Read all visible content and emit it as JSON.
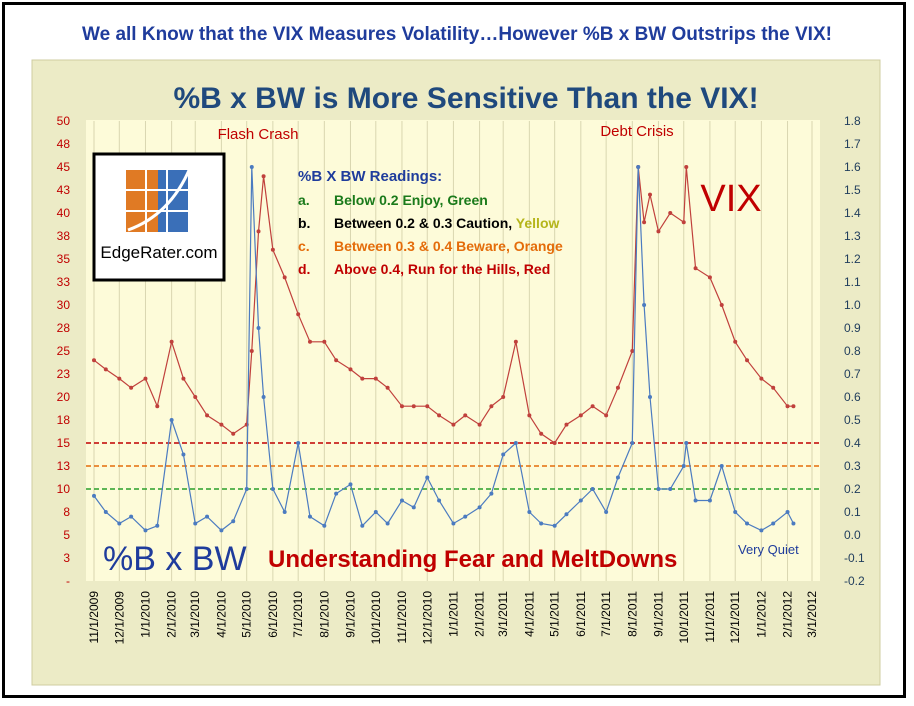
{
  "headline": "We all Know that the VIX Measures Volatility…However %B x BW Outstrips the VIX!",
  "colors": {
    "plot_bg": "#fdfbd9",
    "outer_bg": "#ecebc6",
    "vix": "#c0403c",
    "bbw": "#4b7bc0",
    "title": "#1f497d",
    "red_line": "#c00000",
    "orange_line": "#e46c0a",
    "green_line": "#2aa02a"
  },
  "logo": {
    "text": "EdgeRater.com",
    "icon": "edgerater-logo-icon"
  },
  "readings": {
    "title": "%B X BW Readings:",
    "items": [
      {
        "letter": "a.",
        "text": "Below 0.2 Enjoy, Green",
        "color": "#1a7a1a",
        "letter_color": "#1a7a1a"
      },
      {
        "letter": "b.",
        "text": "Between 0.2 & 0.3 Caution,",
        "extra": "Yellow",
        "color": "#000000",
        "letter_color": "#000000",
        "extra_color": "#b5b51a"
      },
      {
        "letter": "c.",
        "text": "Between 0.3 & 0.4 Beware, Orange",
        "color": "#e46c0a",
        "letter_color": "#e46c0a"
      },
      {
        "letter": "d.",
        "text": "Above 0.4, Run for the Hills, Red",
        "color": "#c00000",
        "letter_color": "#c00000"
      }
    ]
  },
  "chart_data": {
    "type": "line",
    "title": "%B x BW is More Sensitive Than the VIX!",
    "x": [
      "11/1/2009",
      "11/15/2009",
      "12/1/2009",
      "12/15/2009",
      "1/1/2010",
      "1/15/2010",
      "2/1/2010",
      "2/15/2010",
      "3/1/2010",
      "3/15/2010",
      "4/1/2010",
      "4/15/2010",
      "5/1/2010",
      "5/7/2010",
      "5/15/2010",
      "5/21/2010",
      "6/1/2010",
      "6/15/2010",
      "7/1/2010",
      "7/15/2010",
      "8/1/2010",
      "8/15/2010",
      "9/1/2010",
      "9/15/2010",
      "10/1/2010",
      "10/15/2010",
      "11/1/2010",
      "11/15/2010",
      "12/1/2010",
      "12/15/2010",
      "1/1/2011",
      "1/15/2011",
      "2/1/2011",
      "2/15/2011",
      "3/1/2011",
      "3/16/2011",
      "4/1/2011",
      "4/15/2011",
      "5/1/2011",
      "5/15/2011",
      "6/1/2011",
      "6/15/2011",
      "7/1/2011",
      "7/15/2011",
      "8/1/2011",
      "8/8/2011",
      "8/15/2011",
      "8/22/2011",
      "9/1/2011",
      "9/15/2011",
      "10/1/2011",
      "10/4/2011",
      "10/15/2011",
      "11/1/2011",
      "11/15/2011",
      "12/1/2011",
      "12/15/2011",
      "1/1/2012",
      "1/15/2012",
      "2/1/2012",
      "2/8/2012"
    ],
    "x_ticks": [
      "11/1/2009",
      "12/1/2009",
      "1/1/2010",
      "2/1/2010",
      "3/1/2010",
      "4/1/2010",
      "5/1/2010",
      "6/1/2010",
      "7/1/2010",
      "8/1/2010",
      "9/1/2010",
      "10/1/2010",
      "11/1/2010",
      "12/1/2010",
      "1/1/2011",
      "2/1/2011",
      "3/1/2011",
      "4/1/2011",
      "5/1/2011",
      "6/1/2011",
      "7/1/2011",
      "8/1/2011",
      "9/1/2011",
      "10/1/2011",
      "11/1/2011",
      "12/1/2011",
      "1/1/2012",
      "2/1/2012",
      "3/1/2012"
    ],
    "y_left": {
      "ticks": [
        "50",
        "48",
        "45",
        "43",
        "40",
        "38",
        "35",
        "33",
        "30",
        "28",
        "25",
        "23",
        "20",
        "18",
        "15",
        "13",
        "10",
        "8",
        "5",
        "3",
        "-"
      ],
      "ylim": [
        0,
        50
      ]
    },
    "y_right": {
      "ticks": [
        "1.8",
        "1.7",
        "1.6",
        "1.5",
        "1.4",
        "1.3",
        "1.2",
        "1.1",
        "1.0",
        "0.9",
        "0.8",
        "0.7",
        "0.6",
        "0.5",
        "0.4",
        "0.3",
        "0.2",
        "0.1",
        "0.0",
        "-0.1",
        "-0.2"
      ],
      "ylim": [
        -0.2,
        1.8
      ]
    },
    "series": [
      {
        "name": "VIX",
        "axis": "left",
        "values": [
          24,
          23,
          22,
          21,
          22,
          19,
          26,
          22,
          20,
          18,
          17,
          16,
          17,
          25,
          38,
          44,
          36,
          33,
          29,
          26,
          26,
          24,
          23,
          22,
          22,
          21,
          19,
          19,
          19,
          18,
          17,
          18,
          17,
          19,
          20,
          26,
          18,
          16,
          15,
          17,
          18,
          19,
          18,
          21,
          25,
          45,
          39,
          42,
          38,
          40,
          39,
          45,
          34,
          33,
          30,
          26,
          24,
          22,
          21,
          19,
          19
        ]
      },
      {
        "name": "%B x BW",
        "axis": "right",
        "values": [
          0.17,
          0.1,
          0.05,
          0.08,
          0.02,
          0.04,
          0.5,
          0.35,
          0.05,
          0.08,
          0.02,
          0.06,
          0.2,
          1.6,
          0.9,
          0.6,
          0.2,
          0.1,
          0.4,
          0.08,
          0.04,
          0.18,
          0.22,
          0.04,
          0.1,
          0.05,
          0.15,
          0.12,
          0.25,
          0.15,
          0.05,
          0.08,
          0.12,
          0.18,
          0.35,
          0.4,
          0.1,
          0.05,
          0.04,
          0.09,
          0.15,
          0.2,
          0.1,
          0.25,
          0.4,
          1.6,
          1.0,
          0.6,
          0.2,
          0.2,
          0.3,
          0.4,
          0.15,
          0.15,
          0.3,
          0.1,
          0.05,
          0.02,
          0.05,
          0.1,
          0.05
        ]
      }
    ],
    "thresholds_right_axis": [
      0.4,
      0.3,
      0.2
    ],
    "annotations": {
      "flash_crash": "Flash Crash",
      "debt_crisis": "Debt Crisis",
      "vix_label": "VIX",
      "bbw_label": "%B x BW",
      "understanding": "Understanding Fear and MeltDowns",
      "very_quiet": "Very Quiet"
    }
  }
}
